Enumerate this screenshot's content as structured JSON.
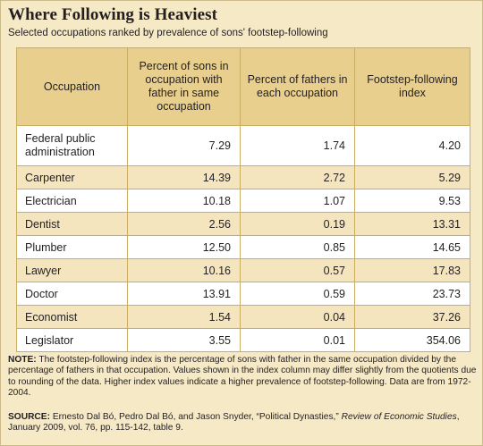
{
  "title": "Where Following is Heaviest",
  "subtitle": "Selected occupations ranked by prevalence of sons' footstep-following",
  "table": {
    "headers": [
      "Occupation",
      "Percent of sons in occupation with father in same occupation",
      "Percent of fathers in each occupation",
      "Footstep-following index"
    ],
    "rows": [
      {
        "occupation": "Federal public administration",
        "sons": "7.29",
        "fathers": "1.74",
        "index": "4.20"
      },
      {
        "occupation": "Carpenter",
        "sons": "14.39",
        "fathers": "2.72",
        "index": "5.29"
      },
      {
        "occupation": "Electrician",
        "sons": "10.18",
        "fathers": "1.07",
        "index": "9.53"
      },
      {
        "occupation": "Dentist",
        "sons": "2.56",
        "fathers": "0.19",
        "index": "13.31"
      },
      {
        "occupation": "Plumber",
        "sons": "12.50",
        "fathers": "0.85",
        "index": "14.65"
      },
      {
        "occupation": "Lawyer",
        "sons": "10.16",
        "fathers": "0.57",
        "index": "17.83"
      },
      {
        "occupation": "Doctor",
        "sons": "13.91",
        "fathers": "0.59",
        "index": "23.73"
      },
      {
        "occupation": "Economist",
        "sons": "1.54",
        "fathers": "0.04",
        "index": "37.26"
      },
      {
        "occupation": "Legislator",
        "sons": "3.55",
        "fathers": "0.01",
        "index": "354.06"
      }
    ]
  },
  "note": {
    "label": "NOTE:",
    "text": "The footstep-following index is the percentage of sons with father in the same occupation divided by the percentage of fathers in that occupation. Values shown in the index column may differ slightly from the quotients due to rounding of the data. Higher index values indicate a higher prevalence of footstep-following. Data are from 1972-2004."
  },
  "source": {
    "label": "SOURCE:",
    "text_before": "Ernesto Dal Bó, Pedro Dal Bó, and Jason Snyder, “Political Dynasties,”",
    "journal": "Review of Economic Studies",
    "text_after": ", January 2009, vol. 76, pp. 115-142, table 9."
  }
}
